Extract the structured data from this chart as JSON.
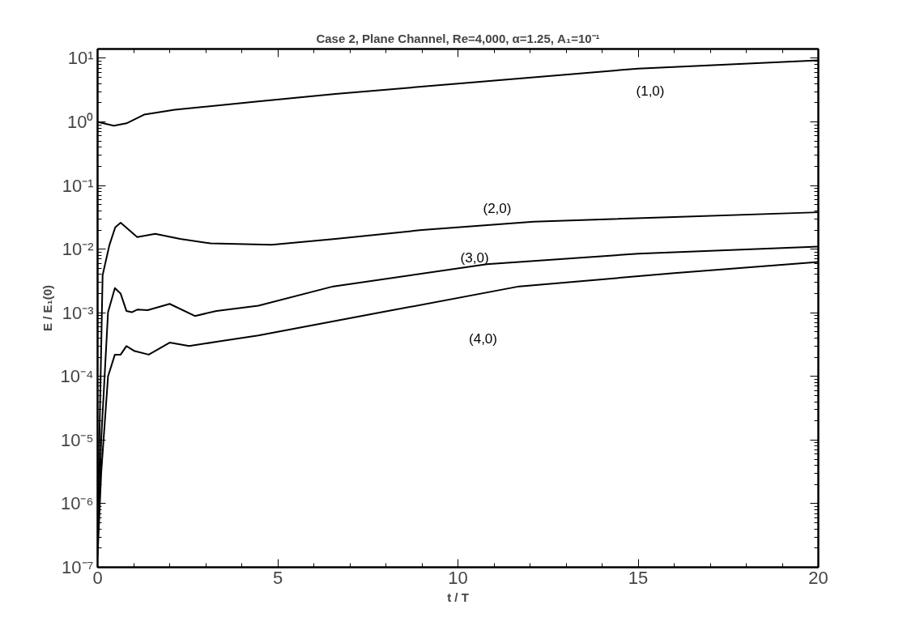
{
  "chart_data": {
    "type": "line",
    "title": "Case 2, Plane Channel, Re=4,000, α=1.25, A₁=10⁻¹",
    "xlabel": "t / T",
    "ylabel": "E / E₁(0)",
    "log": "y",
    "grid": false,
    "legend": false,
    "marker": "none",
    "line_style": "solid",
    "xlim": [
      0,
      20
    ],
    "xticks": [
      0,
      5,
      10,
      15,
      20
    ],
    "ylim": [
      1e-07,
      14
    ],
    "yticks": [
      {
        "value": 1e-07,
        "label": "10⁻⁷"
      },
      {
        "value": 1e-06,
        "label": "10⁻⁶"
      },
      {
        "value": 1e-05,
        "label": "10⁻⁵"
      },
      {
        "value": 0.0001,
        "label": "10⁻⁴"
      },
      {
        "value": 0.001,
        "label": "10⁻³"
      },
      {
        "value": 0.01,
        "label": "10⁻²"
      },
      {
        "value": 0.1,
        "label": "10⁻¹"
      },
      {
        "value": 1,
        "label": "10⁰"
      },
      {
        "value": 10,
        "label": "10¹"
      }
    ],
    "series": [
      {
        "name": "(1,0)",
        "color": "#000000",
        "x": [
          0,
          0.45,
          0.8,
          1.29,
          2.14,
          4.45,
          6.6,
          10,
          15,
          20
        ],
        "values": [
          1.0,
          0.87,
          0.95,
          1.3,
          1.55,
          2.1,
          2.75,
          4.0,
          6.9,
          9.3
        ]
      },
      {
        "name": "(2,0)",
        "color": "#000000",
        "x": [
          0,
          0.05,
          0.14,
          0.33,
          0.49,
          0.64,
          1.1,
          1.6,
          2.29,
          3.14,
          4.83,
          6.6,
          9,
          12.1,
          16,
          20
        ],
        "values": [
          3e-07,
          1e-05,
          0.0039,
          0.0117,
          0.022,
          0.026,
          0.0155,
          0.0174,
          0.0145,
          0.0123,
          0.0117,
          0.0145,
          0.02,
          0.027,
          0.032,
          0.038
        ]
      },
      {
        "name": "(3,0)",
        "color": "#000000",
        "x": [
          0,
          0.1,
          0.29,
          0.48,
          0.64,
          0.8,
          0.95,
          1.1,
          1.39,
          2.0,
          2.7,
          3.3,
          4.46,
          6.54,
          10.8,
          15,
          20
        ],
        "values": [
          2e-07,
          1e-05,
          0.00102,
          0.00245,
          0.002,
          0.00107,
          0.00102,
          0.00112,
          0.0011,
          0.00138,
          0.00089,
          0.00107,
          0.00129,
          0.0026,
          0.0058,
          0.0085,
          0.011
        ]
      },
      {
        "name": "(4,0)",
        "color": "#000000",
        "x": [
          0,
          0.1,
          0.29,
          0.48,
          0.64,
          0.8,
          1.03,
          1.42,
          2.0,
          2.54,
          3.3,
          4.46,
          8,
          11.7,
          16,
          20
        ],
        "values": [
          1.5e-07,
          3e-06,
          0.0001,
          0.00022,
          0.00022,
          0.0003,
          0.00025,
          0.00022,
          0.00034,
          0.0003,
          0.00035,
          0.00044,
          0.00105,
          0.0026,
          0.0042,
          0.0063
        ]
      }
    ]
  }
}
